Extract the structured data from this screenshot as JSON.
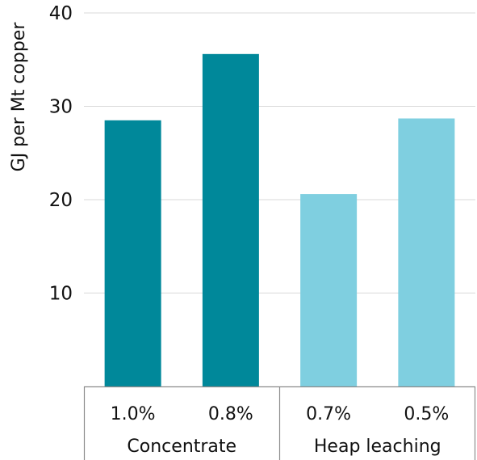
{
  "chart_data": {
    "type": "bar",
    "title": "",
    "xlabel": "",
    "ylabel": "GJ per Mt copper",
    "ylim": [
      0,
      40
    ],
    "yticks": [
      10,
      20,
      30,
      40
    ],
    "grid": true,
    "legend": "none",
    "categories": [
      "1.0%",
      "0.8%",
      "0.7%",
      "0.5%"
    ],
    "groups": [
      {
        "name": "Concentrate",
        "categories": [
          "1.0%",
          "0.8%"
        ],
        "color": "#00889A"
      },
      {
        "name": "Heap leaching",
        "categories": [
          "0.7%",
          "0.5%"
        ],
        "color": "#7FCFE0"
      }
    ],
    "values": [
      28.5,
      35.6,
      20.6,
      28.7
    ]
  }
}
